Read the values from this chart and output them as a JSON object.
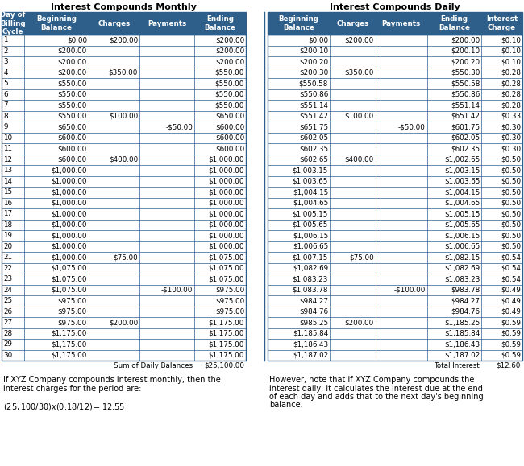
{
  "title_monthly": "Interest Compounds Monthly",
  "title_daily": "Interest Compounds Daily",
  "header_monthly": [
    "Day of\nBilling\nCycle",
    "Beginning\nBalance",
    "Charges",
    "Payments",
    "Ending\nBalance"
  ],
  "header_daily": [
    "Beginning\nBalance",
    "Charges",
    "Payments",
    "Ending\nBalance",
    "Interest\nCharge"
  ],
  "monthly_data": [
    [
      "1",
      "$0.00",
      "$200.00",
      "",
      "$200.00"
    ],
    [
      "2",
      "$200.00",
      "",
      "",
      "$200.00"
    ],
    [
      "3",
      "$200.00",
      "",
      "",
      "$200.00"
    ],
    [
      "4",
      "$200.00",
      "$350.00",
      "",
      "$550.00"
    ],
    [
      "5",
      "$550.00",
      "",
      "",
      "$550.00"
    ],
    [
      "6",
      "$550.00",
      "",
      "",
      "$550.00"
    ],
    [
      "7",
      "$550.00",
      "",
      "",
      "$550.00"
    ],
    [
      "8",
      "$550.00",
      "$100.00",
      "",
      "$650.00"
    ],
    [
      "9",
      "$650.00",
      "",
      "-$50.00",
      "$600.00"
    ],
    [
      "10",
      "$600.00",
      "",
      "",
      "$600.00"
    ],
    [
      "11",
      "$600.00",
      "",
      "",
      "$600.00"
    ],
    [
      "12",
      "$600.00",
      "$400.00",
      "",
      "$1,000.00"
    ],
    [
      "13",
      "$1,000.00",
      "",
      "",
      "$1,000.00"
    ],
    [
      "14",
      "$1,000.00",
      "",
      "",
      "$1,000.00"
    ],
    [
      "15",
      "$1,000.00",
      "",
      "",
      "$1,000.00"
    ],
    [
      "16",
      "$1,000.00",
      "",
      "",
      "$1,000.00"
    ],
    [
      "17",
      "$1,000.00",
      "",
      "",
      "$1,000.00"
    ],
    [
      "18",
      "$1,000.00",
      "",
      "",
      "$1,000.00"
    ],
    [
      "19",
      "$1,000.00",
      "",
      "",
      "$1,000.00"
    ],
    [
      "20",
      "$1,000.00",
      "",
      "",
      "$1,000.00"
    ],
    [
      "21",
      "$1,000.00",
      "$75.00",
      "",
      "$1,075.00"
    ],
    [
      "22",
      "$1,075.00",
      "",
      "",
      "$1,075.00"
    ],
    [
      "23",
      "$1,075.00",
      "",
      "",
      "$1,075.00"
    ],
    [
      "24",
      "$1,075.00",
      "",
      "-$100.00",
      "$975.00"
    ],
    [
      "25",
      "$975.00",
      "",
      "",
      "$975.00"
    ],
    [
      "26",
      "$975.00",
      "",
      "",
      "$975.00"
    ],
    [
      "27",
      "$975.00",
      "$200.00",
      "",
      "$1,175.00"
    ],
    [
      "28",
      "$1,175.00",
      "",
      "",
      "$1,175.00"
    ],
    [
      "29",
      "$1,175.00",
      "",
      "",
      "$1,175.00"
    ],
    [
      "30",
      "$1,175.00",
      "",
      "",
      "$1,175.00"
    ]
  ],
  "daily_data": [
    [
      "$0.00",
      "$200.00",
      "",
      "$200.00",
      "$0.10"
    ],
    [
      "$200.10",
      "",
      "",
      "$200.10",
      "$0.10"
    ],
    [
      "$200.20",
      "",
      "",
      "$200.20",
      "$0.10"
    ],
    [
      "$200.30",
      "$350.00",
      "",
      "$550.30",
      "$0.28"
    ],
    [
      "$550.58",
      "",
      "",
      "$550.58",
      "$0.28"
    ],
    [
      "$550.86",
      "",
      "",
      "$550.86",
      "$0.28"
    ],
    [
      "$551.14",
      "",
      "",
      "$551.14",
      "$0.28"
    ],
    [
      "$551.42",
      "$100.00",
      "",
      "$651.42",
      "$0.33"
    ],
    [
      "$651.75",
      "",
      "-$50.00",
      "$601.75",
      "$0.30"
    ],
    [
      "$602.05",
      "",
      "",
      "$602.05",
      "$0.30"
    ],
    [
      "$602.35",
      "",
      "",
      "$602.35",
      "$0.30"
    ],
    [
      "$602.65",
      "$400.00",
      "",
      "$1,002.65",
      "$0.50"
    ],
    [
      "$1,003.15",
      "",
      "",
      "$1,003.15",
      "$0.50"
    ],
    [
      "$1,003.65",
      "",
      "",
      "$1,003.65",
      "$0.50"
    ],
    [
      "$1,004.15",
      "",
      "",
      "$1,004.15",
      "$0.50"
    ],
    [
      "$1,004.65",
      "",
      "",
      "$1,004.65",
      "$0.50"
    ],
    [
      "$1,005.15",
      "",
      "",
      "$1,005.15",
      "$0.50"
    ],
    [
      "$1,005.65",
      "",
      "",
      "$1,005.65",
      "$0.50"
    ],
    [
      "$1,006.15",
      "",
      "",
      "$1,006.15",
      "$0.50"
    ],
    [
      "$1,006.65",
      "",
      "",
      "$1,006.65",
      "$0.50"
    ],
    [
      "$1,007.15",
      "$75.00",
      "",
      "$1,082.15",
      "$0.54"
    ],
    [
      "$1,082.69",
      "",
      "",
      "$1,082.69",
      "$0.54"
    ],
    [
      "$1,083.23",
      "",
      "",
      "$1,083.23",
      "$0.54"
    ],
    [
      "$1,083.78",
      "",
      "-$100.00",
      "$983.78",
      "$0.49"
    ],
    [
      "$984.27",
      "",
      "",
      "$984.27",
      "$0.49"
    ],
    [
      "$984.76",
      "",
      "",
      "$984.76",
      "$0.49"
    ],
    [
      "$985.25",
      "$200.00",
      "",
      "$1,185.25",
      "$0.59"
    ],
    [
      "$1,185.84",
      "",
      "",
      "$1,185.84",
      "$0.59"
    ],
    [
      "$1,186.43",
      "",
      "",
      "$1,186.43",
      "$0.59"
    ],
    [
      "$1,187.02",
      "",
      "",
      "$1,187.02",
      "$0.59"
    ]
  ],
  "monthly_footer_label": "Sum of Daily Balances",
  "monthly_footer_value": "$25,100.00",
  "daily_footer_label": "Total Interest",
  "daily_footer_value": "$12.60",
  "note_monthly_line1": "If XYZ Company compounds interest monthly, then the",
  "note_monthly_line2": "interest charges for the period are:",
  "note_monthly_line3": "",
  "note_monthly_line4": "($25,100/30) x (0.18/12) = $12.55",
  "note_daily_line1": "However, note that if XYZ Company compounds the",
  "note_daily_line2": "interest daily, it calculates the interest due at the end",
  "note_daily_line3": "of each day and adds that to the next day's beginning",
  "note_daily_line4": "balance.",
  "header_color": "#2E5F8A",
  "header_text_color": "#FFFFFF",
  "border_color": "#2E5F8A",
  "text_color": "#000000",
  "row_line_color": "#2E5F8A",
  "title_fontsize": 8.0,
  "header_fontsize": 6.3,
  "data_fontsize": 6.3,
  "note_fontsize": 7.0
}
